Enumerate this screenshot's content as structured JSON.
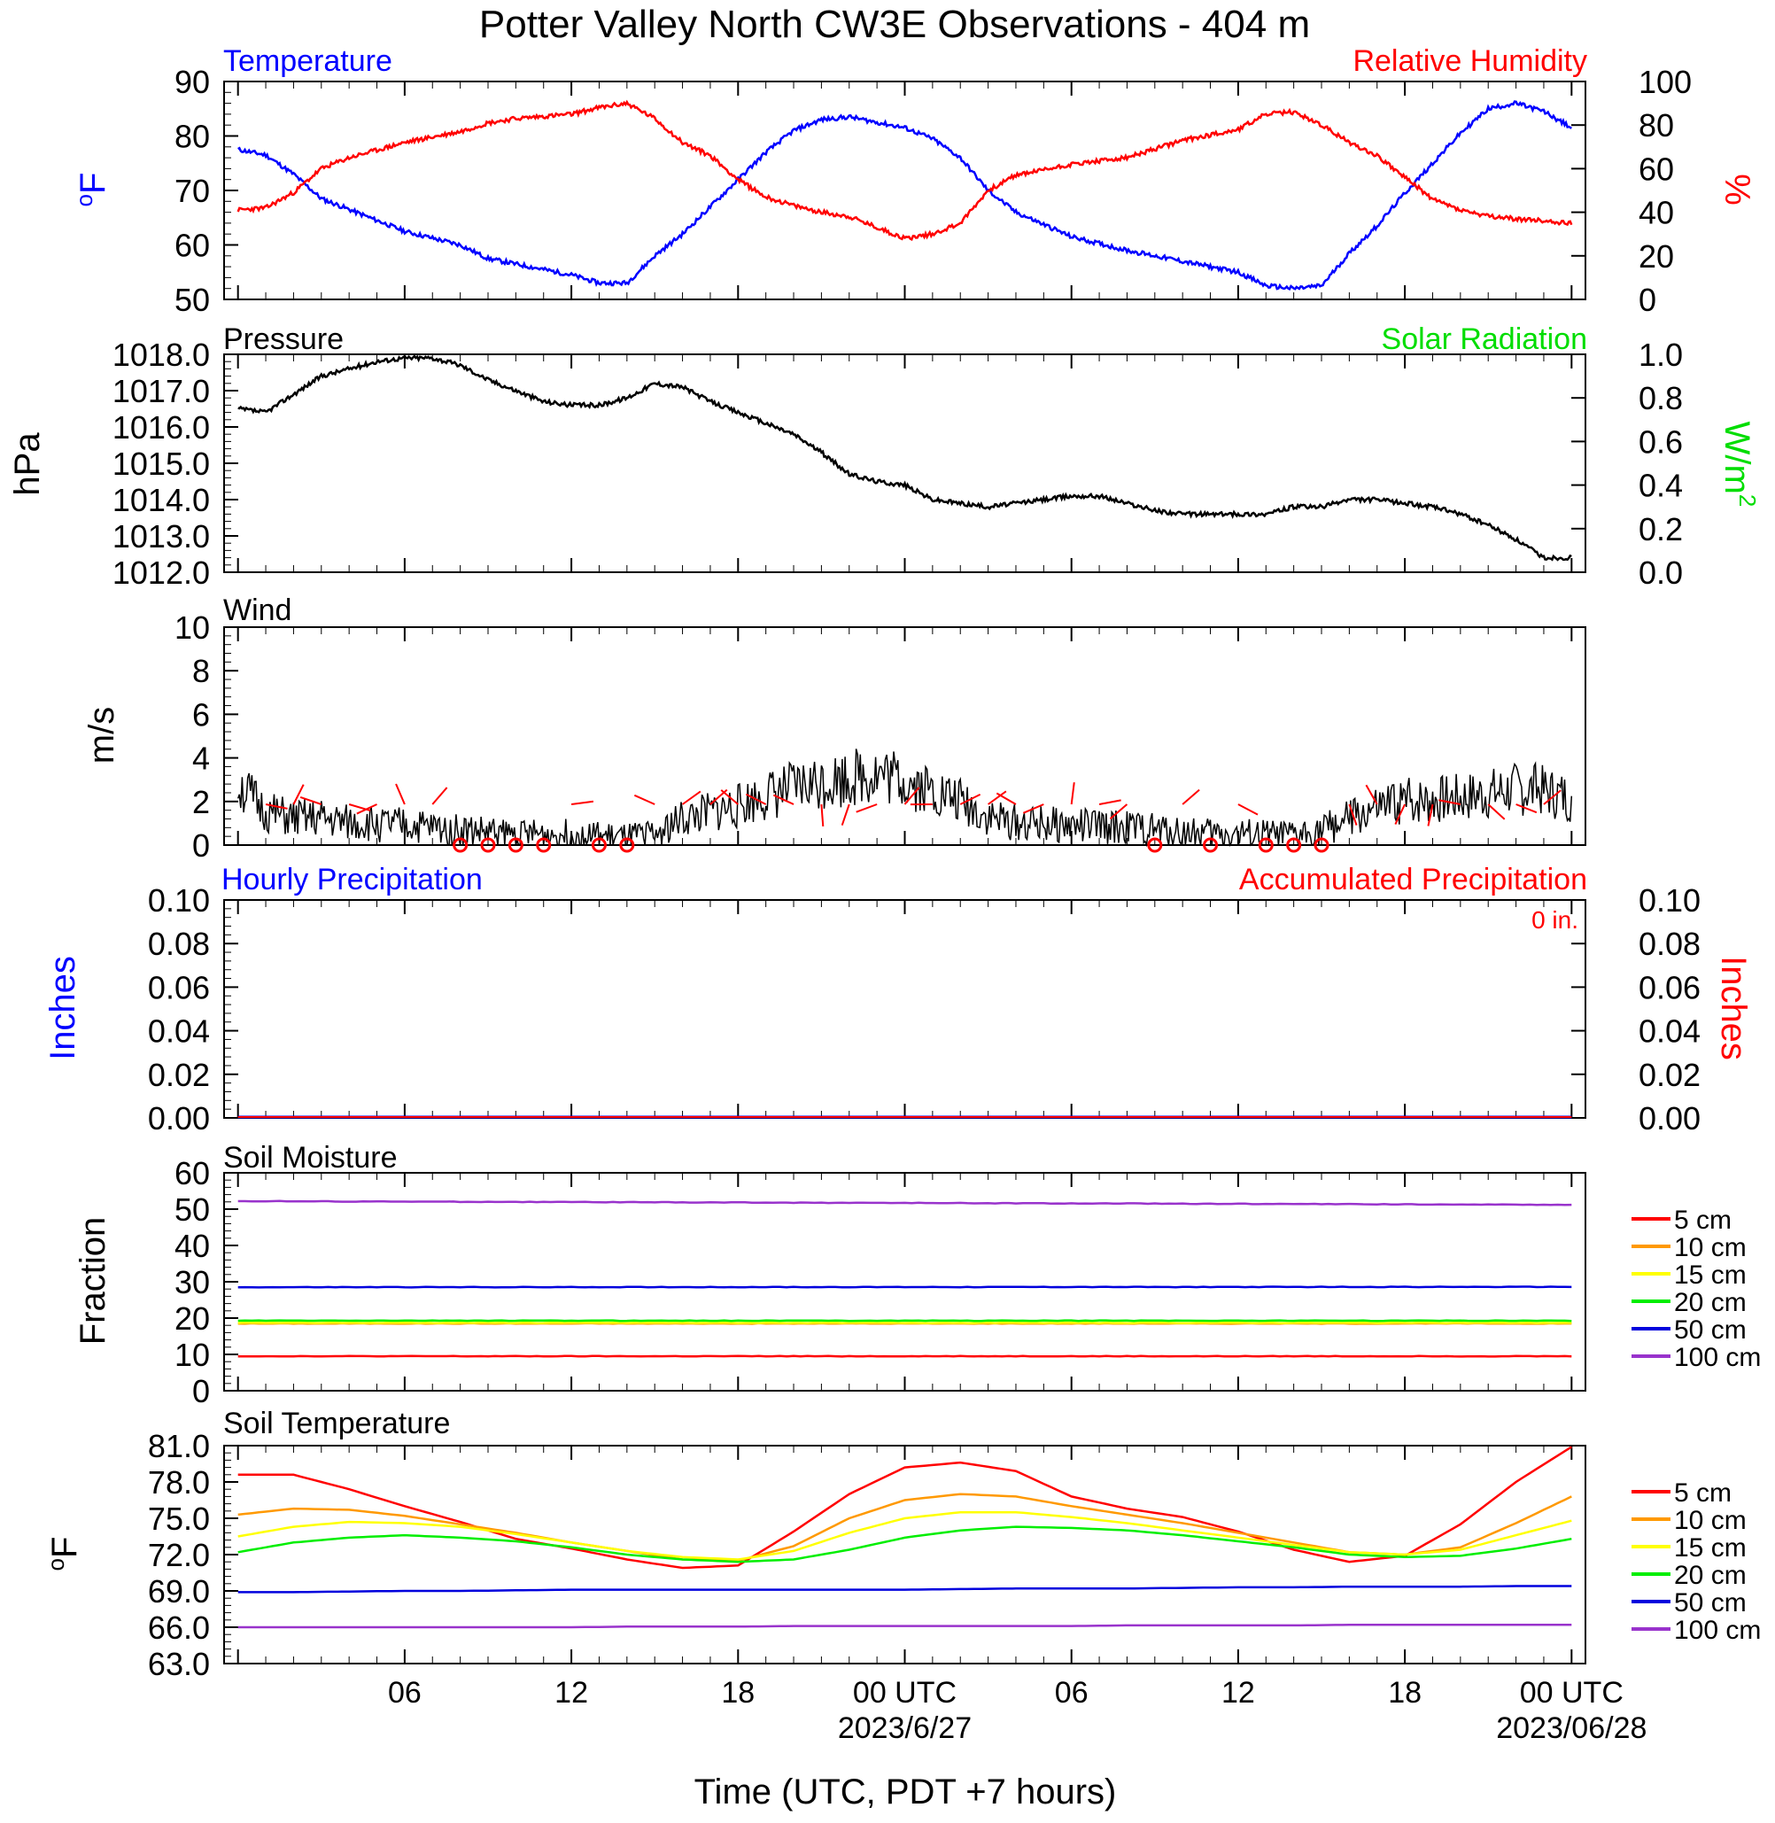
{
  "title": "Potter Valley North CW3E Observations - 404 m",
  "xlabel": "Time (UTC, PDT +7 hours)",
  "time_axis": {
    "range_hours": [
      -0.5,
      48.5
    ],
    "tick_labels": [
      {
        "hour": 6,
        "label": "06"
      },
      {
        "hour": 12,
        "label": "12"
      },
      {
        "hour": 18,
        "label": "18"
      },
      {
        "hour": 24,
        "label": "00 UTC",
        "date": "2023/6/27"
      },
      {
        "hour": 30,
        "label": "06"
      },
      {
        "hour": 36,
        "label": "12"
      },
      {
        "hour": 42,
        "label": "18"
      },
      {
        "hour": 48,
        "label": "00 UTC",
        "date": "2023/06/28"
      }
    ]
  },
  "colors": {
    "temperature": "#0000ff",
    "humidity": "#ff0000",
    "pressure": "#000000",
    "solar": "#00dd00",
    "wind": "#000000",
    "barb": "#ff0000",
    "precip_hourly": "#0000ff",
    "precip_accum": "#ff0000"
  },
  "panels": {
    "temp_rh": {
      "left_title": "Temperature",
      "right_title": "Relative Humidity",
      "left_unit": "oF",
      "right_unit": "%"
    },
    "pressure": {
      "left_title": "Pressure",
      "right_title": "Solar Radiation",
      "left_unit": "hPa",
      "right_unit": "W/m2"
    },
    "wind": {
      "left_title": "Wind",
      "left_unit": "m/s"
    },
    "precip": {
      "left_title": "Hourly Precipitation",
      "right_title": "Accumulated Precipitation",
      "left_unit": "Inches",
      "right_unit": "Inches",
      "total_label": "0 in."
    },
    "soil_moisture": {
      "left_title": "Soil Moisture",
      "left_unit": "Fraction"
    },
    "soil_temp": {
      "left_title": "Soil Temperature",
      "left_unit": "oF"
    }
  },
  "legend_labels": [
    "5 cm",
    "10 cm",
    "15 cm",
    "20 cm",
    "50 cm",
    "100 cm"
  ],
  "legend_colors": [
    "#ff0000",
    "#ff9900",
    "#ffff00",
    "#00ee00",
    "#0000dd",
    "#9933cc"
  ],
  "chart_data": [
    {
      "type": "line",
      "title": "Temperature / Relative Humidity",
      "x_units": "hours since 2023/6/26 00 UTC",
      "ylim_left": [
        50,
        90
      ],
      "ylim_right": [
        0,
        100
      ],
      "left_ticks": [
        "90",
        "80",
        "70",
        "60",
        "50"
      ],
      "right_ticks": [
        "100",
        "80",
        "60",
        "40",
        "20",
        "0"
      ],
      "series": [
        {
          "name": "Temperature",
          "axis": "left",
          "x": [
            0,
            1,
            2,
            3,
            4,
            6,
            8,
            9,
            10,
            12,
            13,
            14,
            15,
            16,
            17,
            18,
            19,
            20,
            21,
            22,
            23,
            24,
            25,
            26,
            27,
            28,
            30,
            32,
            34,
            36,
            37,
            38,
            39,
            40,
            41,
            42,
            43,
            44,
            45,
            46,
            47,
            48
          ],
          "y": [
            77.5,
            76.5,
            73.0,
            68.5,
            66.5,
            62.5,
            60.0,
            57.5,
            56.5,
            54.5,
            53.0,
            53.0,
            58.0,
            62.0,
            67.0,
            72.0,
            77.0,
            81.0,
            83.0,
            83.5,
            82.5,
            81.5,
            79.5,
            76.0,
            70.0,
            66.0,
            61.5,
            59.0,
            57.0,
            55.0,
            52.5,
            52.0,
            52.5,
            58.5,
            63.5,
            69.5,
            75.0,
            80.5,
            85.0,
            86.0,
            84.5,
            81.5
          ]
        },
        {
          "name": "Relative Humidity",
          "axis": "right",
          "x": [
            0,
            1,
            2,
            3,
            4,
            6,
            8,
            9,
            10,
            12,
            13,
            14,
            15,
            16,
            17,
            18,
            19,
            20,
            21,
            22,
            23,
            24,
            25,
            26,
            27,
            28,
            30,
            32,
            34,
            36,
            37,
            38,
            39,
            40,
            41,
            42,
            43,
            44,
            45,
            46,
            47,
            48
          ],
          "y": [
            41,
            42,
            49,
            60,
            65,
            72,
            77,
            81,
            83,
            85,
            88,
            90,
            83,
            72,
            66,
            55,
            47,
            43,
            40,
            38,
            33,
            28,
            30,
            35,
            50,
            57,
            62,
            65,
            73,
            78,
            85,
            86,
            80,
            72,
            66,
            56,
            46,
            41,
            38,
            37,
            36,
            35
          ]
        }
      ]
    },
    {
      "type": "line",
      "title": "Pressure / Solar Radiation",
      "ylim_left": [
        1012.0,
        1018.0
      ],
      "ylim_right": [
        0.0,
        1.0
      ],
      "left_ticks": [
        "1018.0",
        "1017.0",
        "1016.0",
        "1015.0",
        "1014.0",
        "1013.0",
        "1012.0"
      ],
      "right_ticks": [
        "1.0",
        "0.8",
        "0.6",
        "0.4",
        "0.2",
        "0.0"
      ],
      "series": [
        {
          "name": "Pressure",
          "axis": "left",
          "x": [
            0,
            1,
            2,
            3,
            4,
            5,
            6,
            7,
            8,
            9,
            10,
            11,
            12,
            13,
            14,
            15,
            16,
            17,
            18,
            19,
            20,
            21,
            22,
            23,
            24,
            25,
            26,
            27,
            28,
            29,
            30,
            31,
            32,
            33,
            34,
            35,
            36,
            37,
            38,
            39,
            40,
            41,
            42,
            43,
            44,
            45,
            46,
            47,
            48
          ],
          "y": [
            1016.5,
            1016.4,
            1016.9,
            1017.4,
            1017.6,
            1017.8,
            1017.9,
            1017.9,
            1017.7,
            1017.3,
            1017.0,
            1016.7,
            1016.6,
            1016.6,
            1016.8,
            1017.2,
            1017.1,
            1016.7,
            1016.4,
            1016.1,
            1015.8,
            1015.3,
            1014.7,
            1014.5,
            1014.4,
            1014.0,
            1013.9,
            1013.8,
            1013.9,
            1014.0,
            1014.1,
            1014.1,
            1013.9,
            1013.7,
            1013.6,
            1013.6,
            1013.6,
            1013.6,
            1013.8,
            1013.8,
            1014.0,
            1014.0,
            1013.9,
            1013.8,
            1013.6,
            1013.3,
            1012.9,
            1012.4,
            1012.4
          ]
        }
      ]
    },
    {
      "type": "line",
      "title": "Wind",
      "ylim": [
        0,
        10
      ],
      "y_ticks": [
        "10",
        "8",
        "6",
        "4",
        "2",
        "0"
      ],
      "series": [
        {
          "name": "Wind",
          "x": [
            0,
            1,
            2,
            3,
            4,
            6,
            8,
            10,
            12,
            14,
            15,
            16,
            18,
            19,
            20,
            21,
            22,
            23,
            24,
            25,
            26,
            27,
            28,
            30,
            32,
            34,
            36,
            38,
            39,
            40,
            42,
            44,
            46,
            47,
            48
          ],
          "y": [
            2.8,
            1.5,
            1.2,
            1.2,
            1.0,
            0.9,
            0.7,
            0.5,
            0.5,
            0.3,
            0.5,
            1.2,
            1.8,
            2.3,
            2.6,
            2.9,
            3.1,
            3.3,
            3.0,
            2.5,
            2.0,
            1.3,
            1.0,
            0.9,
            0.8,
            0.6,
            0.5,
            0.4,
            0.7,
            1.2,
            2.0,
            2.2,
            2.6,
            2.5,
            2.2
          ]
        }
      ],
      "calm_barb_hours": [
        8,
        9,
        10,
        11,
        13,
        14,
        33,
        35,
        37,
        38,
        39
      ]
    },
    {
      "type": "line",
      "title": "Precipitation",
      "ylim": [
        0.0,
        0.1
      ],
      "y_ticks": [
        "0.10",
        "0.08",
        "0.06",
        "0.04",
        "0.02",
        "0.00"
      ],
      "series": [
        {
          "name": "Hourly Precipitation",
          "x": [
            0,
            48
          ],
          "y": [
            0.0,
            0.0
          ]
        },
        {
          "name": "Accumulated Precipitation",
          "x": [
            0,
            48
          ],
          "y": [
            0.0,
            0.0
          ]
        }
      ]
    },
    {
      "type": "line",
      "title": "Soil Moisture",
      "ylim": [
        0,
        60
      ],
      "y_ticks": [
        "60",
        "50",
        "40",
        "30",
        "20",
        "10",
        "0"
      ],
      "x": [
        0,
        48
      ],
      "series": [
        {
          "name": "5 cm",
          "y": [
            9.5,
            9.5
          ]
        },
        {
          "name": "10 cm",
          "y": [
            18.5,
            18.5
          ]
        },
        {
          "name": "15 cm",
          "y": [
            18.7,
            18.7
          ]
        },
        {
          "name": "20 cm",
          "y": [
            19.3,
            19.3
          ]
        },
        {
          "name": "50 cm",
          "y": [
            28.5,
            28.6
          ]
        },
        {
          "name": "100 cm",
          "y": [
            52.2,
            51.2
          ]
        }
      ]
    },
    {
      "type": "line",
      "title": "Soil Temperature",
      "ylim": [
        63.0,
        81.0
      ],
      "y_ticks": [
        "81.0",
        "78.0",
        "75.0",
        "72.0",
        "69.0",
        "66.0",
        "63.0"
      ],
      "x": [
        0,
        2,
        4,
        6,
        8,
        10,
        12,
        14,
        16,
        18,
        20,
        22,
        24,
        26,
        28,
        30,
        32,
        34,
        36,
        38,
        40,
        42,
        44,
        46,
        48
      ],
      "series": [
        {
          "name": "5 cm",
          "y": [
            78.6,
            78.6,
            77.4,
            76.0,
            74.7,
            73.3,
            72.5,
            71.6,
            70.9,
            71.1,
            73.9,
            77.0,
            79.2,
            79.6,
            78.9,
            76.8,
            75.8,
            75.1,
            73.9,
            72.4,
            71.4,
            71.9,
            74.5,
            78.0,
            80.9
          ]
        },
        {
          "name": "10 cm",
          "y": [
            75.3,
            75.8,
            75.7,
            75.2,
            74.5,
            73.8,
            73.0,
            72.3,
            71.6,
            71.5,
            72.7,
            75.0,
            76.5,
            77.0,
            76.8,
            76.0,
            75.3,
            74.6,
            73.8,
            73.0,
            72.2,
            72.0,
            72.6,
            74.6,
            76.8
          ]
        },
        {
          "name": "15 cm",
          "y": [
            73.5,
            74.3,
            74.7,
            74.6,
            74.3,
            73.7,
            73.0,
            72.3,
            71.8,
            71.6,
            72.3,
            73.8,
            75.0,
            75.5,
            75.5,
            75.1,
            74.6,
            74.0,
            73.4,
            72.8,
            72.2,
            72.0,
            72.4,
            73.6,
            74.8
          ]
        },
        {
          "name": "20 cm",
          "y": [
            72.2,
            73.0,
            73.4,
            73.6,
            73.4,
            73.1,
            72.6,
            72.0,
            71.6,
            71.4,
            71.6,
            72.4,
            73.4,
            74.0,
            74.3,
            74.2,
            74.0,
            73.6,
            73.1,
            72.6,
            72.0,
            71.8,
            71.9,
            72.5,
            73.3
          ]
        },
        {
          "name": "50 cm",
          "y": [
            68.9,
            68.9,
            68.95,
            69.0,
            69.0,
            69.05,
            69.1,
            69.1,
            69.1,
            69.1,
            69.1,
            69.1,
            69.1,
            69.15,
            69.2,
            69.2,
            69.2,
            69.25,
            69.3,
            69.3,
            69.35,
            69.35,
            69.35,
            69.4,
            69.4
          ]
        },
        {
          "name": "100 cm",
          "y": [
            66.0,
            66.0,
            66.0,
            66.0,
            66.0,
            66.0,
            66.0,
            66.05,
            66.05,
            66.05,
            66.1,
            66.1,
            66.1,
            66.1,
            66.1,
            66.1,
            66.15,
            66.15,
            66.15,
            66.15,
            66.2,
            66.2,
            66.2,
            66.2,
            66.2
          ]
        }
      ]
    }
  ]
}
